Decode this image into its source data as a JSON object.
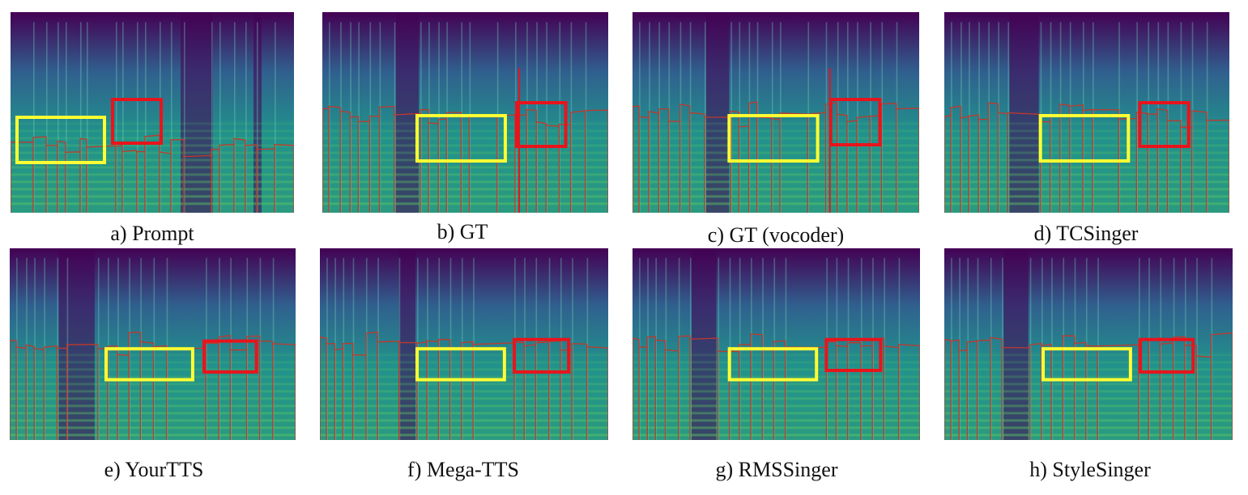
{
  "figure": {
    "panels": [
      {
        "id": "a",
        "caption": "a) Prompt"
      },
      {
        "id": "b",
        "caption": "b) GT"
      },
      {
        "id": "c",
        "caption": "c) GT (vocoder)"
      },
      {
        "id": "d",
        "caption": "d) TCSinger"
      },
      {
        "id": "e",
        "caption": "e) YourTTS"
      },
      {
        "id": "f",
        "caption": "f) Mega-TTS"
      },
      {
        "id": "g",
        "caption": "g) RMSSinger"
      },
      {
        "id": "h",
        "caption": "h) StyleSinger"
      }
    ],
    "colors": {
      "highlight_yellow": "#ffff33",
      "highlight_red": "#e8141c",
      "pitch_contour": "#c0392b",
      "spectrogram_low": "#440154",
      "spectrogram_mid": "#21918c",
      "spectrogram_high": "#5ec962"
    }
  }
}
